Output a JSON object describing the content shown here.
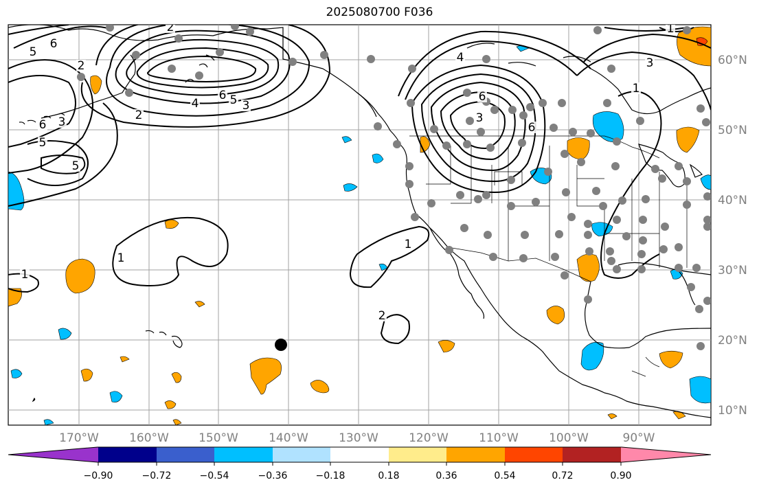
{
  "title": "2025080700 F036",
  "map": {
    "lon_ticks": [
      "170°W",
      "160°W",
      "150°W",
      "140°W",
      "130°W",
      "120°W",
      "110°W",
      "100°W",
      "90°W"
    ],
    "lat_ticks": [
      "60°N",
      "50°N",
      "40°N",
      "30°N",
      "20°N",
      "10°N"
    ],
    "contour_labels": [
      "6",
      "2",
      "5",
      "2",
      "6",
      "5",
      "3",
      "4",
      "2",
      "6",
      "5",
      "3",
      "5",
      "1",
      "1",
      "1",
      "2",
      "4",
      "6",
      "3",
      "6",
      "3",
      "1",
      "1"
    ]
  },
  "colorbar": {
    "ticks": [
      "−0.90",
      "−0.72",
      "−0.54",
      "−0.36",
      "−0.18",
      "0.18",
      "0.36",
      "0.54",
      "0.72",
      "0.90"
    ],
    "colors": [
      "#9933cc",
      "#00008b",
      "#3a5fcd",
      "#00bfff",
      "#b0e2ff",
      "#ffffff",
      "#ffec8b",
      "#ffa500",
      "#ff4500",
      "#b22222",
      "#ff88aa",
      "#ff88aa"
    ],
    "left_arrow_color": "#9933cc",
    "right_arrow_color": "#ff88aa"
  },
  "legend_colors": {
    "negative_shade": "#00bfff",
    "positive_shade": "#ffa500",
    "strong_positive": "#ff4500",
    "station_dot": "#808080",
    "marker": "#000000"
  }
}
